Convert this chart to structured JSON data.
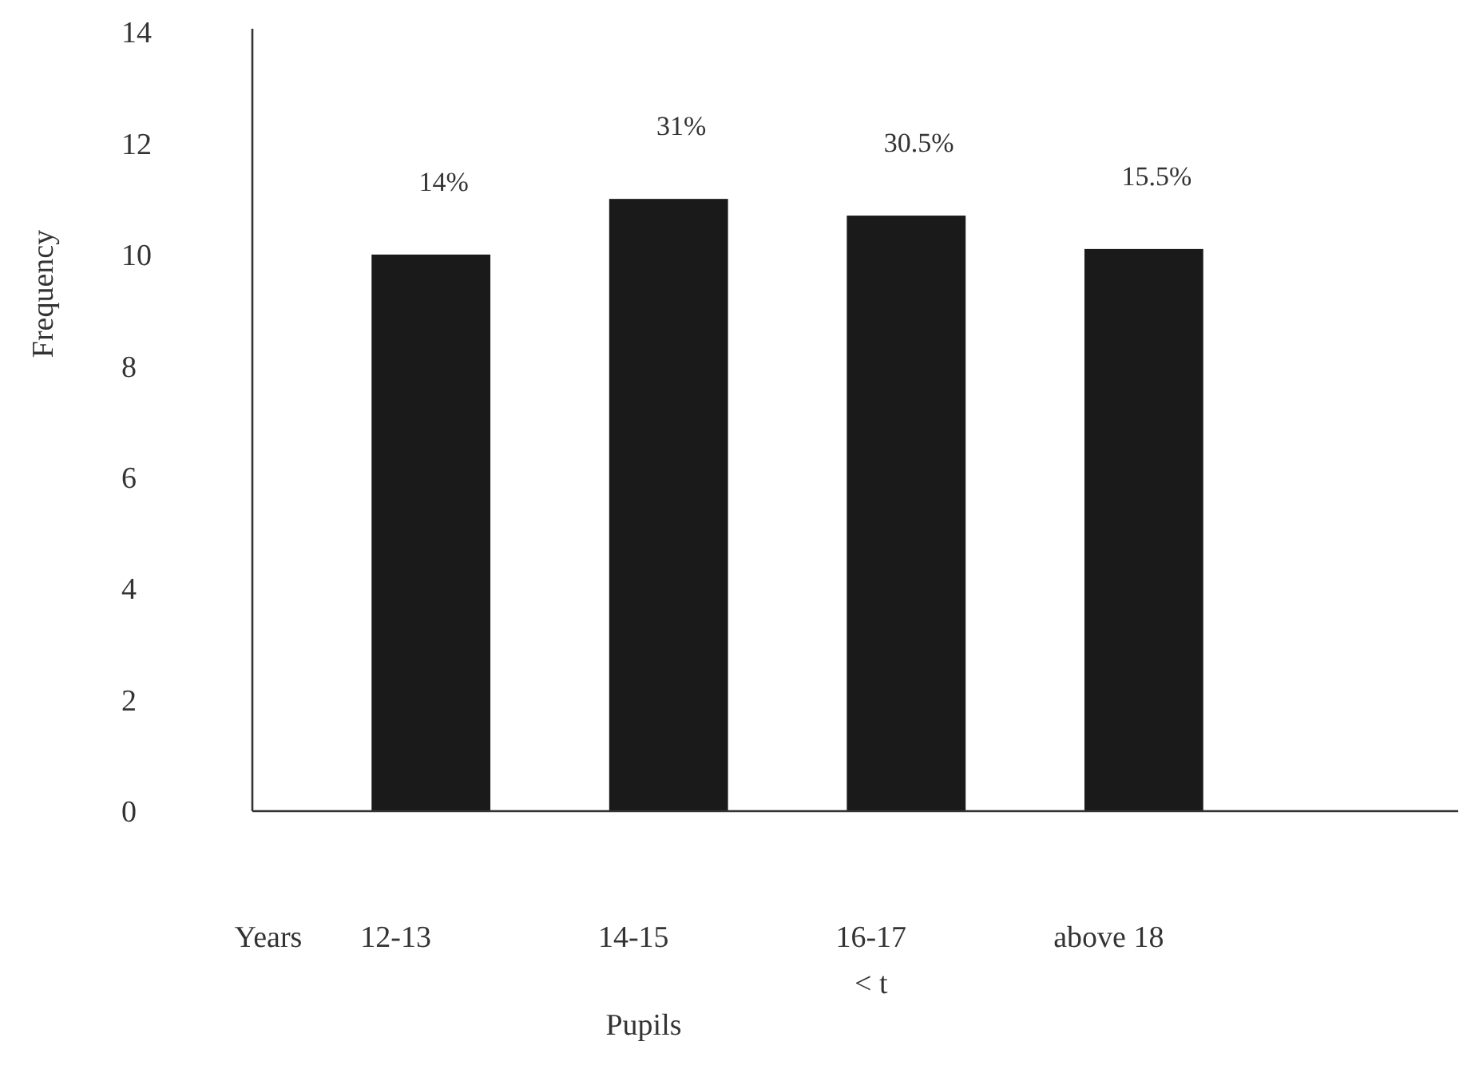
{
  "chart_data": {
    "type": "bar",
    "xlabel": "Pupils",
    "ylabel": "Frequency",
    "categories": [
      "12-13",
      "14-15",
      "16-17",
      "above 18"
    ],
    "values": [
      10,
      11,
      10.7,
      10.1
    ],
    "color": "#1a1a1a",
    "ylim": [
      0,
      14
    ],
    "yticks": [
      0,
      2,
      4,
      6,
      8,
      10,
      12,
      14
    ],
    "annotations": [
      "Years",
      "< t",
      {
        "text": "14%",
        "x": "12-13",
        "y": 10
      },
      {
        "text": "31%",
        "x": "14-15",
        "y": 11
      },
      {
        "text": "30.5%",
        "x": "16-17",
        "y": 10.7
      },
      {
        "text": "15.5%",
        "x": "above 18",
        "y": 10.1
      }
    ]
  }
}
